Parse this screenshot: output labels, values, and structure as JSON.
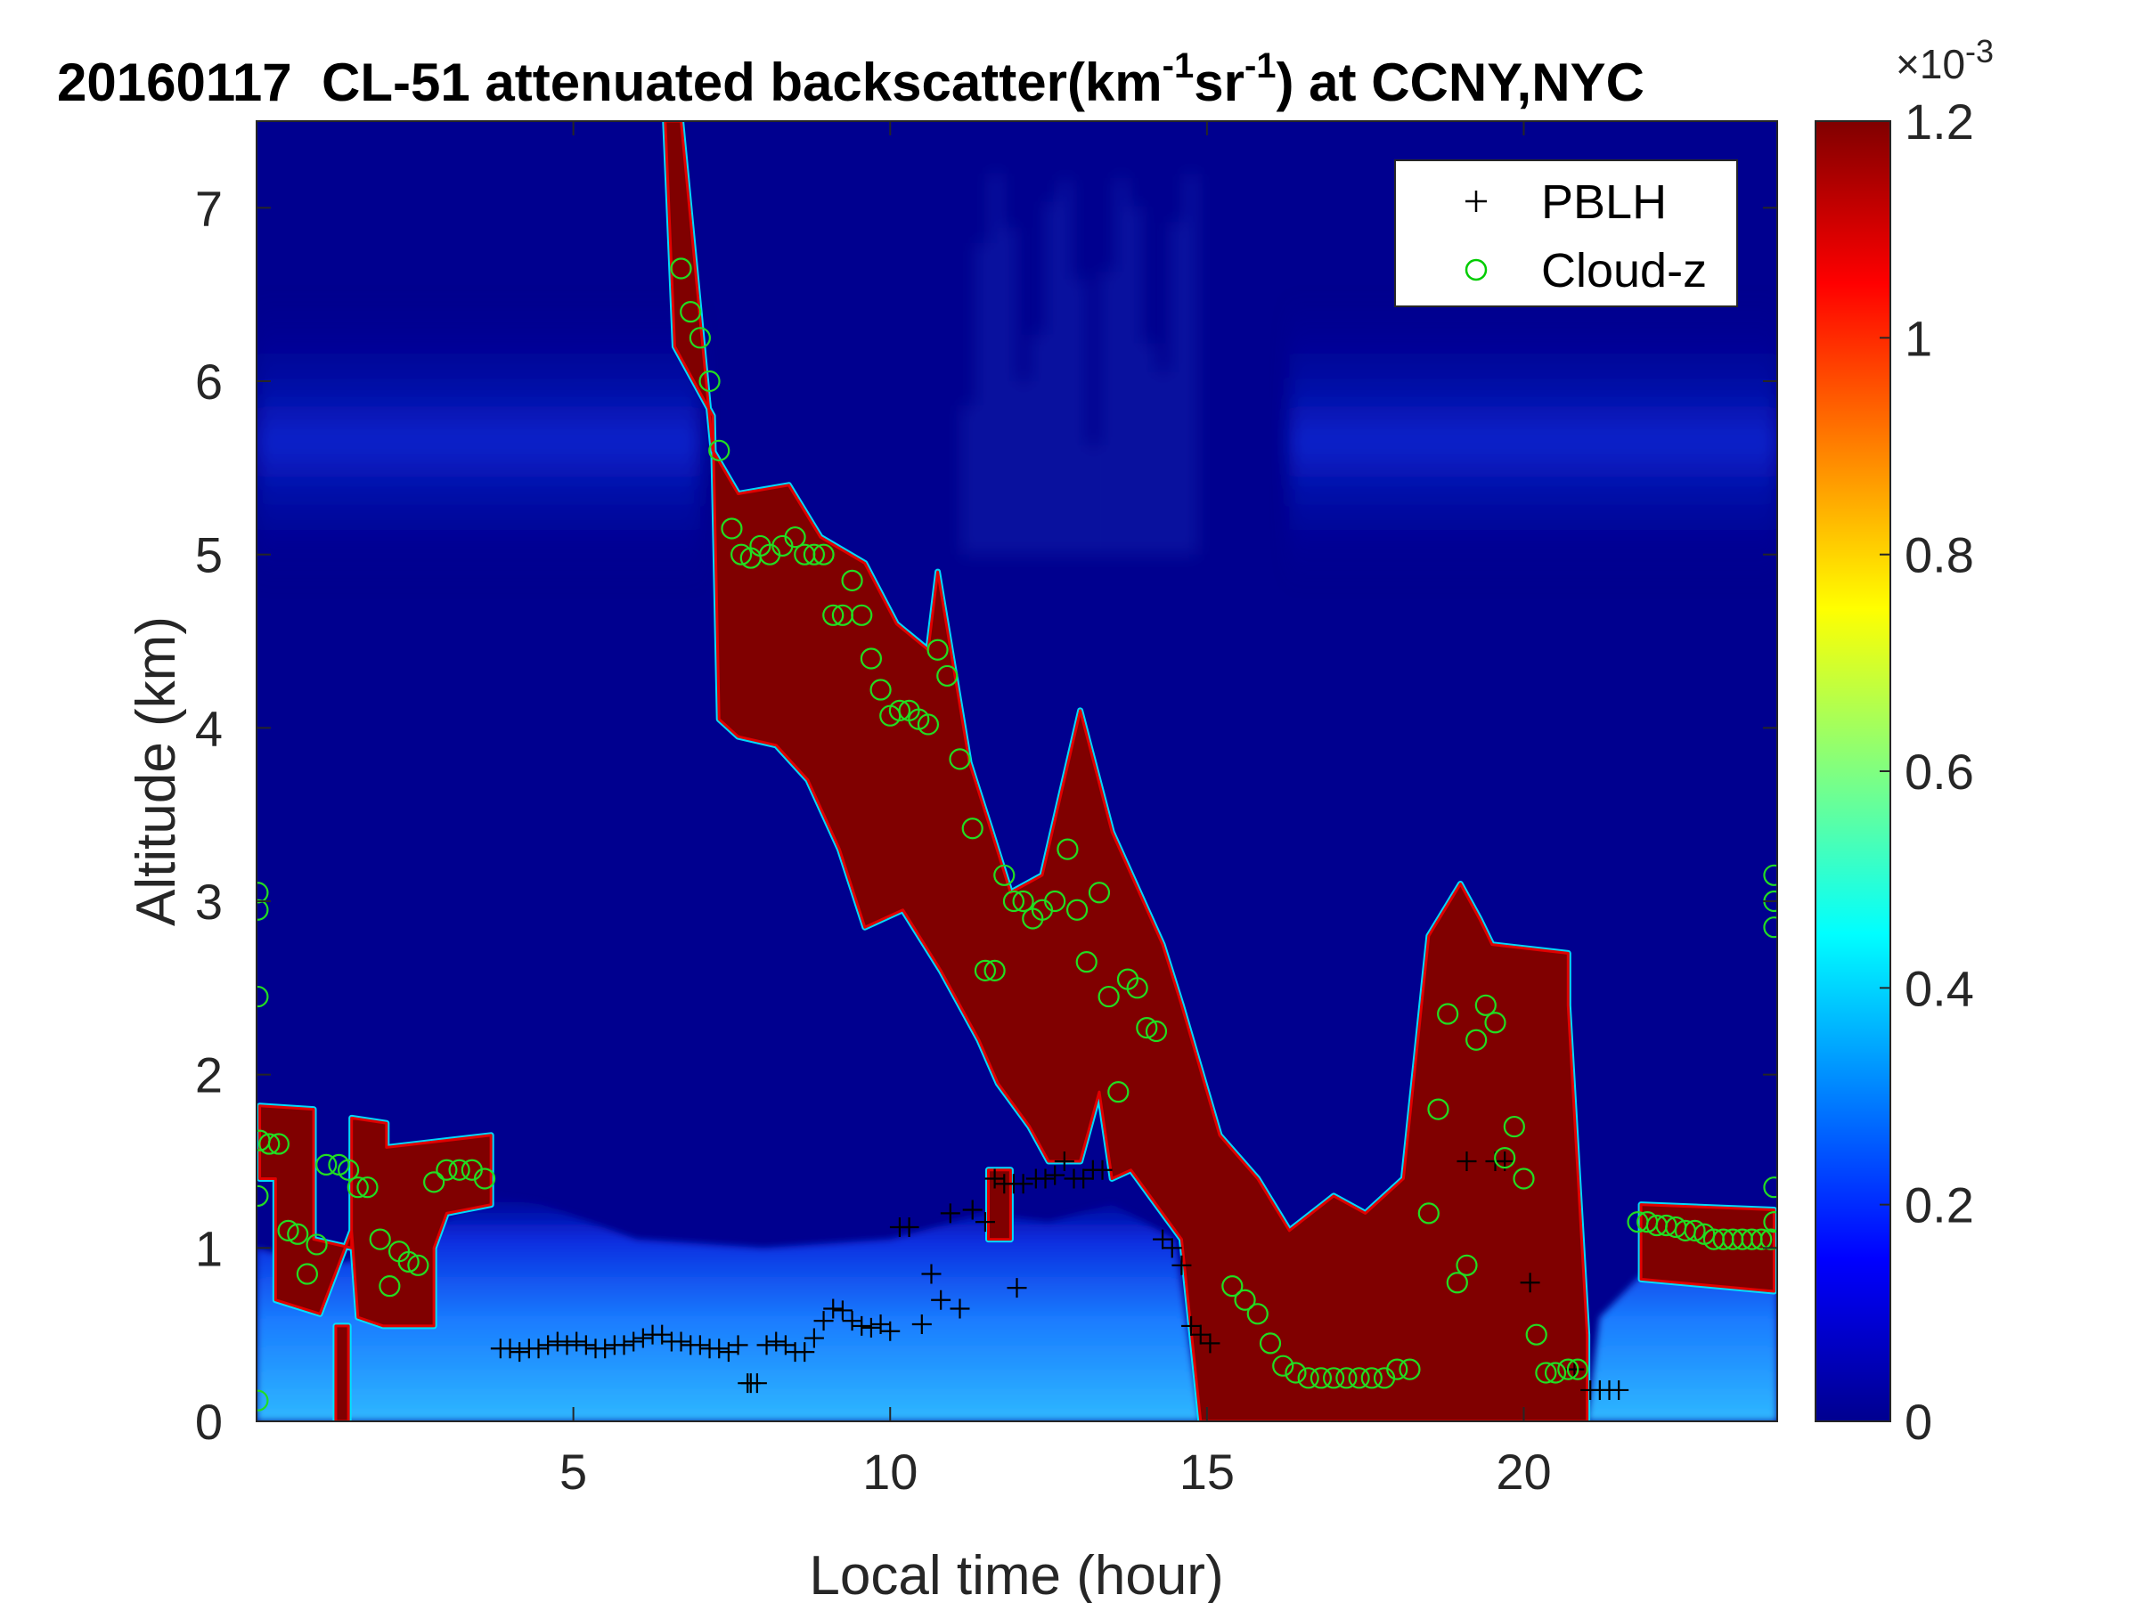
{
  "chart_data": {
    "type": "heatmap",
    "title": {
      "date": "20160117",
      "instrument": "CL-51 attenuated backscatter(km",
      "unit_sup1": "-1",
      "unit_mid": "sr",
      "unit_sup2": "-1",
      "location": ") at CCNY,NYC"
    },
    "xlabel": "Local time (hour)",
    "ylabel": "Altitude (km)",
    "xlim": [
      0,
      24
    ],
    "ylim": [
      0,
      7.5
    ],
    "x_ticks": [
      5,
      10,
      15,
      20
    ],
    "y_ticks": [
      0,
      1,
      2,
      3,
      4,
      5,
      6,
      7
    ],
    "colorbar": {
      "colormap": "jet",
      "clim": [
        0,
        1.2
      ],
      "ticks": [
        0,
        0.2,
        0.4,
        0.6,
        0.8,
        1,
        1.2
      ],
      "multiplier_base": "×10",
      "multiplier_exp": "-3"
    },
    "legend": {
      "location": "top-right",
      "entries": [
        {
          "label": "PBLH",
          "marker": "+",
          "color": "#000000"
        },
        {
          "label": "Cloud-z",
          "marker": "o",
          "color": "#00cc00"
        }
      ]
    },
    "cloud_layer_base": [
      [
        0.05,
        1.82
      ],
      [
        0.6,
        1.8
      ],
      [
        0.9,
        1.78
      ],
      [
        1.0,
        1.08
      ],
      [
        1.5,
        1.75
      ],
      [
        2.0,
        1.72
      ],
      [
        2.1,
        1.4
      ],
      [
        2.5,
        1.62
      ],
      [
        2.8,
        1.58
      ],
      [
        3.2,
        1.65
      ],
      [
        3.7,
        1.62
      ],
      [
        3.9,
        1.3
      ],
      [
        4.5,
        null
      ],
      [
        6.3,
        null
      ],
      [
        6.4,
        7.0
      ],
      [
        6.6,
        7.5
      ],
      [
        7.1,
        6.2
      ],
      [
        7.2,
        5.6
      ],
      [
        7.5,
        5.35
      ],
      [
        8.0,
        5.3
      ],
      [
        8.5,
        5.4
      ],
      [
        8.9,
        5.1
      ],
      [
        9.5,
        4.95
      ],
      [
        10.0,
        4.6
      ],
      [
        10.5,
        4.45
      ],
      [
        10.8,
        4.9
      ],
      [
        11.2,
        3.8
      ],
      [
        11.6,
        3.2
      ],
      [
        12.0,
        3.0
      ],
      [
        12.5,
        3.2
      ],
      [
        13.0,
        4.1
      ],
      [
        13.4,
        3.4
      ],
      [
        13.8,
        3.0
      ],
      [
        14.3,
        2.7
      ],
      [
        14.6,
        2.4
      ],
      [
        15.2,
        1.6
      ],
      [
        15.8,
        1.4
      ],
      [
        16.5,
        1.15
      ],
      [
        17.0,
        1.3
      ],
      [
        17.5,
        1.2
      ],
      [
        18.0,
        1.45
      ],
      [
        18.5,
        2.8
      ],
      [
        19.0,
        3.1
      ],
      [
        19.3,
        2.9
      ],
      [
        19.5,
        2.75
      ],
      [
        20.5,
        2.7
      ],
      [
        20.7,
        2.4
      ],
      [
        21.0,
        0.5
      ],
      [
        21.9,
        1.25
      ],
      [
        23.0,
        1.2
      ],
      [
        23.9,
        1.15
      ]
    ],
    "cloud_layer_top": [
      [
        0.05,
        1.4
      ],
      [
        0.6,
        1.3
      ],
      [
        0.9,
        0.65
      ],
      [
        1.0,
        0.6
      ],
      [
        1.5,
        1.2
      ],
      [
        2.0,
        0.55
      ],
      [
        2.5,
        0.6
      ],
      [
        2.8,
        1.0
      ],
      [
        3.2,
        1.2
      ],
      [
        3.7,
        1.25
      ],
      [
        6.4,
        6.0
      ],
      [
        7.2,
        4.0
      ],
      [
        8.0,
        3.9
      ],
      [
        9.0,
        3.3
      ],
      [
        9.8,
        2.85
      ],
      [
        10.5,
        2.95
      ],
      [
        11.2,
        2.2
      ],
      [
        11.6,
        1.95
      ],
      [
        12.0,
        1.7
      ],
      [
        12.5,
        1.5
      ],
      [
        13.0,
        1.9
      ],
      [
        13.4,
        1.5
      ],
      [
        13.8,
        1.4
      ],
      [
        14.3,
        1.0
      ],
      [
        14.8,
        0.05
      ],
      [
        20.9,
        0.05
      ],
      [
        21.0,
        0.3
      ],
      [
        21.9,
        0.8
      ],
      [
        23.9,
        0.75
      ]
    ],
    "cloud_z": [
      [
        0.05,
        1.62
      ],
      [
        0.2,
        1.6
      ],
      [
        0.35,
        1.6
      ],
      [
        0.5,
        1.1
      ],
      [
        0.65,
        1.08
      ],
      [
        0.8,
        0.85
      ],
      [
        0.95,
        1.02
      ],
      [
        1.1,
        1.48
      ],
      [
        1.3,
        1.48
      ],
      [
        1.45,
        1.45
      ],
      [
        1.6,
        1.35
      ],
      [
        1.75,
        1.35
      ],
      [
        1.95,
        1.05
      ],
      [
        2.1,
        0.78
      ],
      [
        2.25,
        0.98
      ],
      [
        2.4,
        0.92
      ],
      [
        2.55,
        0.9
      ],
      [
        2.8,
        1.38
      ],
      [
        3.0,
        1.45
      ],
      [
        3.2,
        1.45
      ],
      [
        3.4,
        1.45
      ],
      [
        3.6,
        1.4
      ],
      [
        6.7,
        6.65
      ],
      [
        6.85,
        6.4
      ],
      [
        7.0,
        6.25
      ],
      [
        7.15,
        6.0
      ],
      [
        7.3,
        5.6
      ],
      [
        7.5,
        5.15
      ],
      [
        7.65,
        5.0
      ],
      [
        7.8,
        4.98
      ],
      [
        7.95,
        5.05
      ],
      [
        8.1,
        5.0
      ],
      [
        8.3,
        5.05
      ],
      [
        8.5,
        5.1
      ],
      [
        8.65,
        5.0
      ],
      [
        8.8,
        5.0
      ],
      [
        8.95,
        5.0
      ],
      [
        9.1,
        4.65
      ],
      [
        9.25,
        4.65
      ],
      [
        9.4,
        4.85
      ],
      [
        9.55,
        4.65
      ],
      [
        9.7,
        4.4
      ],
      [
        9.85,
        4.22
      ],
      [
        10.0,
        4.07
      ],
      [
        10.15,
        4.1
      ],
      [
        10.3,
        4.1
      ],
      [
        10.45,
        4.05
      ],
      [
        10.6,
        4.02
      ],
      [
        10.75,
        4.45
      ],
      [
        10.9,
        4.3
      ],
      [
        11.1,
        3.82
      ],
      [
        11.3,
        3.42
      ],
      [
        11.5,
        2.6
      ],
      [
        11.65,
        2.6
      ],
      [
        11.8,
        3.15
      ],
      [
        11.95,
        3.0
      ],
      [
        12.1,
        3.0
      ],
      [
        12.25,
        2.9
      ],
      [
        12.4,
        2.95
      ],
      [
        12.6,
        3.0
      ],
      [
        12.8,
        3.3
      ],
      [
        12.95,
        2.95
      ],
      [
        13.1,
        2.65
      ],
      [
        13.3,
        3.05
      ],
      [
        13.45,
        2.45
      ],
      [
        13.6,
        1.9
      ],
      [
        13.75,
        2.55
      ],
      [
        13.9,
        2.5
      ],
      [
        14.05,
        2.27
      ],
      [
        14.2,
        2.25
      ],
      [
        15.4,
        0.78
      ],
      [
        15.6,
        0.7
      ],
      [
        15.8,
        0.62
      ],
      [
        16.0,
        0.45
      ],
      [
        16.2,
        0.32
      ],
      [
        16.4,
        0.28
      ],
      [
        16.6,
        0.25
      ],
      [
        16.8,
        0.25
      ],
      [
        17.0,
        0.25
      ],
      [
        17.2,
        0.25
      ],
      [
        17.4,
        0.25
      ],
      [
        17.6,
        0.25
      ],
      [
        17.8,
        0.25
      ],
      [
        18.0,
        0.3
      ],
      [
        18.2,
        0.3
      ],
      [
        18.5,
        1.2
      ],
      [
        18.65,
        1.8
      ],
      [
        18.8,
        2.35
      ],
      [
        18.95,
        0.8
      ],
      [
        19.1,
        0.9
      ],
      [
        19.25,
        2.2
      ],
      [
        19.4,
        2.4
      ],
      [
        19.55,
        2.3
      ],
      [
        19.7,
        1.52
      ],
      [
        19.85,
        1.7
      ],
      [
        20.0,
        1.4
      ],
      [
        20.2,
        0.5
      ],
      [
        20.35,
        0.28
      ],
      [
        20.5,
        0.28
      ],
      [
        20.7,
        0.3
      ],
      [
        20.85,
        0.3
      ],
      [
        21.8,
        1.15
      ],
      [
        21.95,
        1.15
      ],
      [
        22.1,
        1.13
      ],
      [
        22.25,
        1.13
      ],
      [
        22.4,
        1.12
      ],
      [
        22.55,
        1.1
      ],
      [
        22.7,
        1.1
      ],
      [
        22.85,
        1.08
      ],
      [
        23.0,
        1.05
      ],
      [
        23.15,
        1.05
      ],
      [
        23.3,
        1.05
      ],
      [
        23.45,
        1.05
      ],
      [
        23.6,
        1.05
      ],
      [
        23.75,
        1.05
      ],
      [
        23.9,
        1.05
      ],
      [
        23.95,
        1.15
      ],
      [
        23.95,
        1.35
      ],
      [
        23.95,
        2.85
      ],
      [
        23.95,
        3.0
      ],
      [
        23.95,
        3.15
      ],
      [
        0.02,
        2.95
      ],
      [
        0.02,
        3.05
      ],
      [
        0.02,
        2.45
      ],
      [
        0.02,
        1.3
      ],
      [
        0.02,
        0.12
      ]
    ],
    "pblh": [
      [
        3.85,
        0.42
      ],
      [
        4.0,
        0.42
      ],
      [
        4.15,
        0.4
      ],
      [
        4.3,
        0.42
      ],
      [
        4.45,
        0.42
      ],
      [
        4.6,
        0.44
      ],
      [
        4.75,
        0.46
      ],
      [
        4.9,
        0.44
      ],
      [
        5.05,
        0.46
      ],
      [
        5.2,
        0.44
      ],
      [
        5.35,
        0.42
      ],
      [
        5.5,
        0.42
      ],
      [
        5.65,
        0.44
      ],
      [
        5.8,
        0.44
      ],
      [
        5.95,
        0.46
      ],
      [
        6.1,
        0.48
      ],
      [
        6.25,
        0.5
      ],
      [
        6.4,
        0.5
      ],
      [
        6.55,
        0.46
      ],
      [
        6.7,
        0.46
      ],
      [
        6.85,
        0.44
      ],
      [
        7.0,
        0.44
      ],
      [
        7.15,
        0.42
      ],
      [
        7.3,
        0.42
      ],
      [
        7.45,
        0.4
      ],
      [
        7.6,
        0.44
      ],
      [
        7.75,
        0.22
      ],
      [
        7.9,
        0.22
      ],
      [
        8.05,
        0.44
      ],
      [
        8.2,
        0.46
      ],
      [
        8.35,
        0.44
      ],
      [
        8.5,
        0.4
      ],
      [
        8.65,
        0.4
      ],
      [
        8.8,
        0.48
      ],
      [
        8.95,
        0.58
      ],
      [
        9.1,
        0.65
      ],
      [
        9.25,
        0.64
      ],
      [
        9.4,
        0.58
      ],
      [
        9.55,
        0.55
      ],
      [
        9.7,
        0.54
      ],
      [
        9.85,
        0.56
      ],
      [
        10.0,
        0.52
      ],
      [
        10.15,
        1.12
      ],
      [
        10.3,
        1.12
      ],
      [
        10.5,
        0.56
      ],
      [
        10.65,
        0.85
      ],
      [
        10.8,
        0.7
      ],
      [
        10.95,
        1.2
      ],
      [
        11.1,
        0.65
      ],
      [
        11.3,
        1.22
      ],
      [
        11.5,
        1.15
      ],
      [
        11.65,
        1.4
      ],
      [
        11.8,
        1.37
      ],
      [
        11.95,
        1.37
      ],
      [
        12.1,
        1.37
      ],
      [
        12.3,
        1.4
      ],
      [
        12.45,
        1.4
      ],
      [
        12.6,
        1.42
      ],
      [
        12.75,
        1.5
      ],
      [
        12.9,
        1.4
      ],
      [
        13.05,
        1.4
      ],
      [
        13.2,
        1.45
      ],
      [
        13.35,
        1.45
      ],
      [
        14.3,
        1.05
      ],
      [
        14.45,
        1.0
      ],
      [
        14.6,
        0.9
      ],
      [
        14.75,
        0.55
      ],
      [
        14.9,
        0.5
      ],
      [
        15.05,
        0.45
      ],
      [
        19.1,
        1.5
      ],
      [
        19.55,
        1.5
      ],
      [
        19.7,
        1.5
      ],
      [
        20.1,
        0.8
      ],
      [
        20.8,
        0.3
      ],
      [
        21.05,
        0.18
      ],
      [
        21.2,
        0.18
      ],
      [
        21.35,
        0.18
      ],
      [
        21.5,
        0.18
      ],
      [
        12.0,
        0.77
      ],
      [
        7.8,
        0.22
      ]
    ]
  }
}
